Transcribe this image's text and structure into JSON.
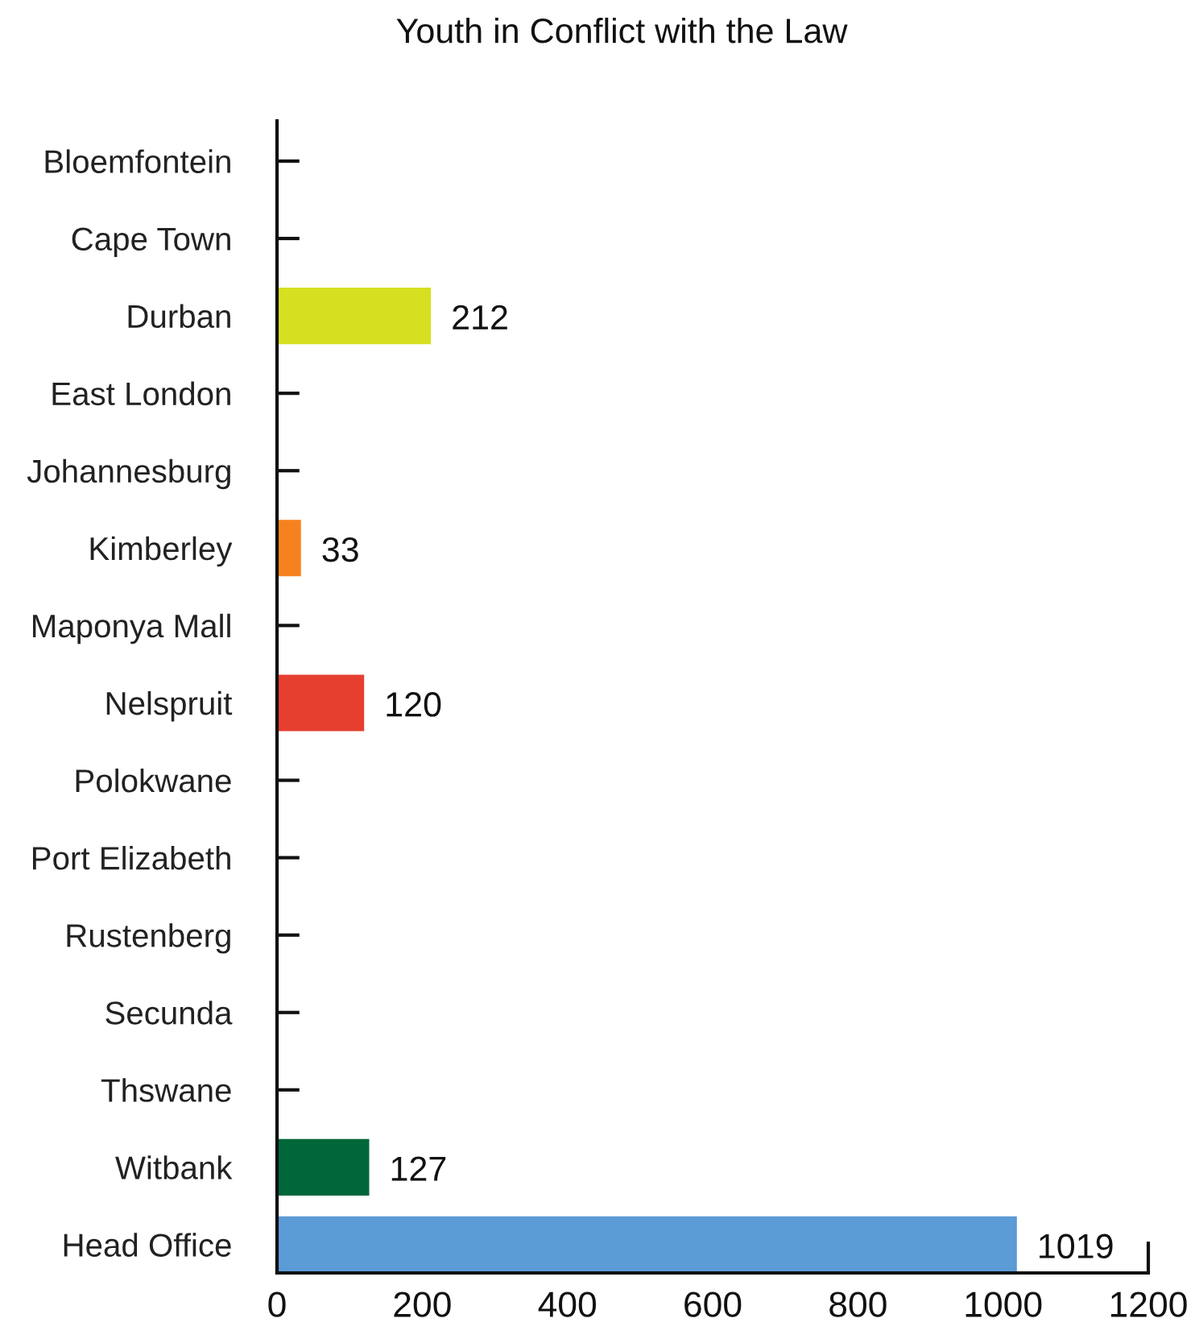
{
  "chart_data": {
    "type": "bar",
    "orientation": "horizontal",
    "title": "Youth in Conflict with the Law",
    "categories": [
      "Bloemfontein",
      "Cape Town",
      "Durban",
      "East London",
      "Johannesburg",
      "Kimberley",
      "Maponya Mall",
      "Nelspruit",
      "Polokwane",
      "Port Elizabeth",
      "Rustenberg",
      "Secunda",
      "Thswane",
      "Witbank",
      "Head Office"
    ],
    "values": [
      null,
      null,
      212,
      null,
      null,
      33,
      null,
      120,
      null,
      null,
      null,
      null,
      null,
      127,
      1019
    ],
    "colors": [
      null,
      null,
      "#d6e021",
      null,
      null,
      "#f5821f",
      null,
      "#e63f30",
      null,
      null,
      null,
      null,
      null,
      "#00673a",
      "#5b9bd6"
    ],
    "xlim": [
      0,
      1200
    ],
    "xticks": [
      0,
      200,
      400,
      600,
      800,
      1000,
      1200
    ],
    "data_labels": true,
    "grid": false
  }
}
